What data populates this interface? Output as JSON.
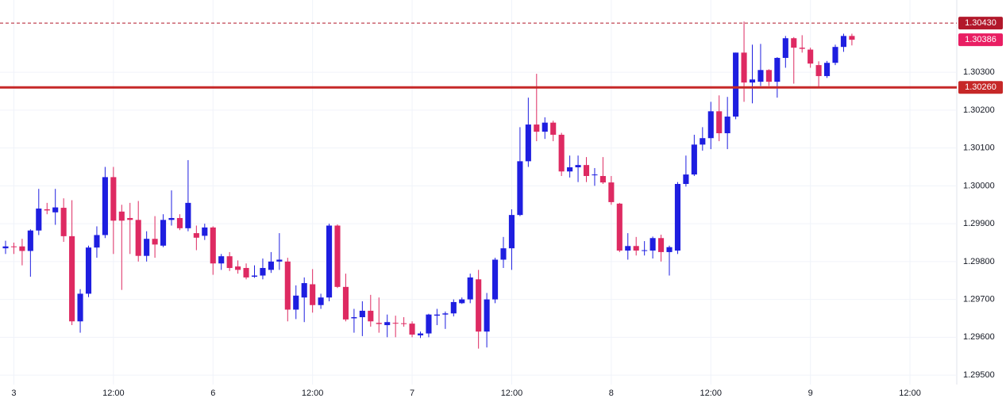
{
  "chart_data": {
    "type": "candlestick",
    "up_color": "#1e1ee0",
    "down_color": "#de2a62",
    "grid": true,
    "ylim": [
      1.29475,
      1.30491
    ],
    "yticks": [
      {
        "value": 1.295,
        "label": "1.29500"
      },
      {
        "value": 1.296,
        "label": "1.29600"
      },
      {
        "value": 1.297,
        "label": "1.29700"
      },
      {
        "value": 1.298,
        "label": "1.29800"
      },
      {
        "value": 1.299,
        "label": "1.29900"
      },
      {
        "value": 1.3,
        "label": "1.30000"
      },
      {
        "value": 1.301,
        "label": "1.30100"
      },
      {
        "value": 1.302,
        "label": "1.30200"
      },
      {
        "value": 1.303,
        "label": "1.30300"
      }
    ],
    "xlim": [
      -0.67,
      114.64
    ],
    "xticks": [
      {
        "value": 1,
        "label": "3"
      },
      {
        "value": 13,
        "label": "12:00"
      },
      {
        "value": 25,
        "label": "6"
      },
      {
        "value": 37,
        "label": "12:00"
      },
      {
        "value": 49,
        "label": "7"
      },
      {
        "value": 61,
        "label": "12:00"
      },
      {
        "value": 73,
        "label": "8"
      },
      {
        "value": 85,
        "label": "12:00"
      },
      {
        "value": 97,
        "label": "9"
      },
      {
        "value": 109,
        "label": "12:00"
      }
    ],
    "price_lines": [
      {
        "value": 1.3043,
        "label": "1.30430",
        "style": "dashed",
        "color": "#b2182b"
      },
      {
        "value": 1.30386,
        "label": "1.30386",
        "style": "none",
        "color": "#e91e63"
      },
      {
        "value": 1.3026,
        "label": "1.30260",
        "style": "solid",
        "color": "#c62828"
      }
    ],
    "open": [
      1.29835,
      1.2984,
      1.2984,
      1.29828,
      1.29882,
      1.29938,
      1.2993,
      1.29942,
      1.29867,
      1.29642,
      1.29715,
      1.29837,
      1.2987,
      1.30023,
      1.29932,
      1.29915,
      1.2991,
      1.29815,
      1.2986,
      1.29842,
      1.2991,
      1.29915,
      1.29888,
      1.29875,
      1.29868,
      1.2989,
      1.29795,
      1.29814,
      1.29787,
      1.29783,
      1.2976,
      1.29763,
      1.29778,
      1.298,
      1.298,
      1.29673,
      1.29705,
      1.2974,
      1.29685,
      1.29705,
      1.29895,
      1.29733,
      1.2965,
      1.29653,
      1.2967,
      1.29638,
      1.29632,
      1.29638,
      1.29637,
      1.29636,
      1.29605,
      1.2961,
      1.29657,
      1.2966,
      1.29663,
      1.2969,
      1.297,
      1.29753,
      1.29615,
      1.297,
      1.29805,
      1.29835,
      1.29923,
      1.30065,
      1.30162,
      1.30143,
      1.30167,
      1.30135,
      1.30038,
      1.30049,
      1.30055,
      1.30028,
      1.30026,
      1.30009,
      1.29953,
      1.29829,
      1.29841,
      1.29829,
      1.29829,
      1.29862,
      1.29825,
      1.29829,
      1.30005,
      1.3003,
      1.30109,
      1.30126,
      1.30197,
      1.30139,
      1.30183,
      1.30352,
      1.30273,
      1.30275,
      1.30306,
      1.30275,
      1.30338,
      1.3039,
      1.30365,
      1.3036,
      1.30319,
      1.3029,
      1.30325,
      1.30367,
      1.30396
    ],
    "high": [
      1.29855,
      1.2985,
      1.2986,
      1.29885,
      1.29992,
      1.29955,
      1.29992,
      1.29967,
      1.29962,
      1.29727,
      1.29842,
      1.29893,
      1.3005,
      1.3005,
      1.2995,
      1.29955,
      1.2996,
      1.2988,
      1.2992,
      1.29925,
      1.29988,
      1.29925,
      1.30068,
      1.29895,
      1.299,
      1.29893,
      1.2982,
      1.29825,
      1.29803,
      1.29795,
      1.2979,
      1.29808,
      1.29825,
      1.29875,
      1.2981,
      1.29737,
      1.29758,
      1.2978,
      1.29715,
      1.299,
      1.29898,
      1.29768,
      1.29675,
      1.29695,
      1.29712,
      1.29705,
      1.2966,
      1.29657,
      1.29653,
      1.29642,
      1.29615,
      1.29662,
      1.29675,
      1.29668,
      1.297,
      1.29705,
      1.29768,
      1.29778,
      1.29717,
      1.2981,
      1.29865,
      1.29938,
      1.30155,
      1.30233,
      1.30296,
      1.30181,
      1.30172,
      1.3014,
      1.3008,
      1.3008,
      1.30076,
      1.30047,
      1.30076,
      1.30026,
      1.29955,
      1.29875,
      1.29865,
      1.29854,
      1.29866,
      1.29871,
      1.29842,
      1.3001,
      1.3008,
      1.30135,
      1.30155,
      1.30222,
      1.30239,
      1.30235,
      1.30352,
      1.30434,
      1.30373,
      1.30375,
      1.30308,
      1.3034,
      1.30396,
      1.30393,
      1.30398,
      1.30365,
      1.30329,
      1.3033,
      1.30373,
      1.30402,
      1.30402
    ],
    "low": [
      1.2982,
      1.2982,
      1.2979,
      1.2976,
      1.2987,
      1.29925,
      1.29897,
      1.29852,
      1.29632,
      1.29612,
      1.29706,
      1.2981,
      1.29862,
      1.2982,
      1.29725,
      1.2982,
      1.298,
      1.298,
      1.2981,
      1.29838,
      1.29895,
      1.29883,
      1.2988,
      1.2983,
      1.29857,
      1.29765,
      1.29778,
      1.29775,
      1.29768,
      1.29753,
      1.29757,
      1.29753,
      1.2977,
      1.29778,
      1.29642,
      1.29648,
      1.2964,
      1.29665,
      1.29675,
      1.29695,
      1.2973,
      1.29642,
      1.29612,
      1.29603,
      1.29628,
      1.29612,
      1.296,
      1.296,
      1.29628,
      1.296,
      1.29598,
      1.296,
      1.29632,
      1.29622,
      1.29655,
      1.29688,
      1.2969,
      1.2957,
      1.29573,
      1.2969,
      1.29783,
      1.29778,
      1.2992,
      1.3005,
      1.30118,
      1.30124,
      1.30118,
      1.30026,
      1.30022,
      1.3001,
      1.3001,
      1.3,
      1.30005,
      1.2995,
      1.29825,
      1.29805,
      1.29816,
      1.29816,
      1.29808,
      1.298,
      1.29763,
      1.2982,
      1.29998,
      1.30026,
      1.30093,
      1.30097,
      1.30118,
      1.30097,
      1.30176,
      1.30222,
      1.30218,
      1.30264,
      1.30264,
      1.30233,
      1.30312,
      1.3027,
      1.30352,
      1.30312,
      1.3026,
      1.30285,
      1.30319,
      1.30354,
      1.30371
    ],
    "close": [
      1.2984,
      1.29838,
      1.29828,
      1.29882,
      1.2994,
      1.29935,
      1.29943,
      1.29867,
      1.29642,
      1.29715,
      1.29837,
      1.2987,
      1.30023,
      1.29908,
      1.29908,
      1.2991,
      1.29815,
      1.2986,
      1.29845,
      1.2991,
      1.29915,
      1.29888,
      1.29955,
      1.29863,
      1.2989,
      1.29795,
      1.29814,
      1.29783,
      1.29778,
      1.29758,
      1.29763,
      1.29783,
      1.298,
      1.29805,
      1.29673,
      1.2971,
      1.29743,
      1.29685,
      1.29705,
      1.29895,
      1.29733,
      1.29647,
      1.29653,
      1.2967,
      1.29642,
      1.29635,
      1.2964,
      1.29636,
      1.29635,
      1.29607,
      1.2961,
      1.2966,
      1.2966,
      1.29663,
      1.29693,
      1.297,
      1.29758,
      1.29615,
      1.297,
      1.29805,
      1.29835,
      1.29923,
      1.30065,
      1.30162,
      1.30143,
      1.30167,
      1.30135,
      1.30038,
      1.30049,
      1.30055,
      1.30026,
      1.3003,
      1.30009,
      1.29957,
      1.29829,
      1.29841,
      1.29829,
      1.2983,
      1.29862,
      1.29825,
      1.29838,
      1.30005,
      1.3003,
      1.30109,
      1.30126,
      1.30197,
      1.30139,
      1.30183,
      1.30352,
      1.30273,
      1.30281,
      1.30306,
      1.30275,
      1.30338,
      1.3039,
      1.30365,
      1.30362,
      1.30323,
      1.3029,
      1.30325,
      1.30367,
      1.30396,
      1.30386
    ]
  }
}
